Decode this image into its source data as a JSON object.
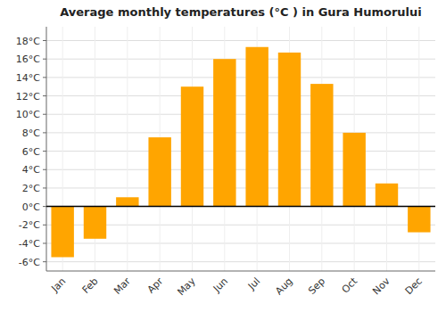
{
  "chart_data": {
    "type": "bar",
    "title": "Average monthly temperatures (°C ) in Gura Humorului",
    "categories": [
      "Jan",
      "Feb",
      "Mar",
      "Apr",
      "May",
      "Jun",
      "Jul",
      "Aug",
      "Sep",
      "Oct",
      "Nov",
      "Dec"
    ],
    "values": [
      -5.5,
      -3.5,
      1.0,
      7.5,
      13.0,
      16.0,
      17.3,
      16.7,
      13.3,
      8.0,
      2.5,
      -2.8
    ],
    "color": "#FFA500",
    "ylim": [
      -7,
      19.5
    ],
    "yticks": [
      {
        "value": -6,
        "label": "-6°C"
      },
      {
        "value": -4,
        "label": "-4°C"
      },
      {
        "value": -2,
        "label": "-2°C"
      },
      {
        "value": 0,
        "label": "0°C"
      },
      {
        "value": 2,
        "label": "2°C"
      },
      {
        "value": 4,
        "label": "4°C"
      },
      {
        "value": 6,
        "label": "6°C"
      },
      {
        "value": 8,
        "label": "8°C"
      },
      {
        "value": 10,
        "label": "10°C"
      },
      {
        "value": 12,
        "label": "12°C"
      },
      {
        "value": 14,
        "label": "14°C"
      },
      {
        "value": 16,
        "label": "16°C"
      },
      {
        "value": 18,
        "label": "18°C"
      }
    ],
    "grid": true
  }
}
